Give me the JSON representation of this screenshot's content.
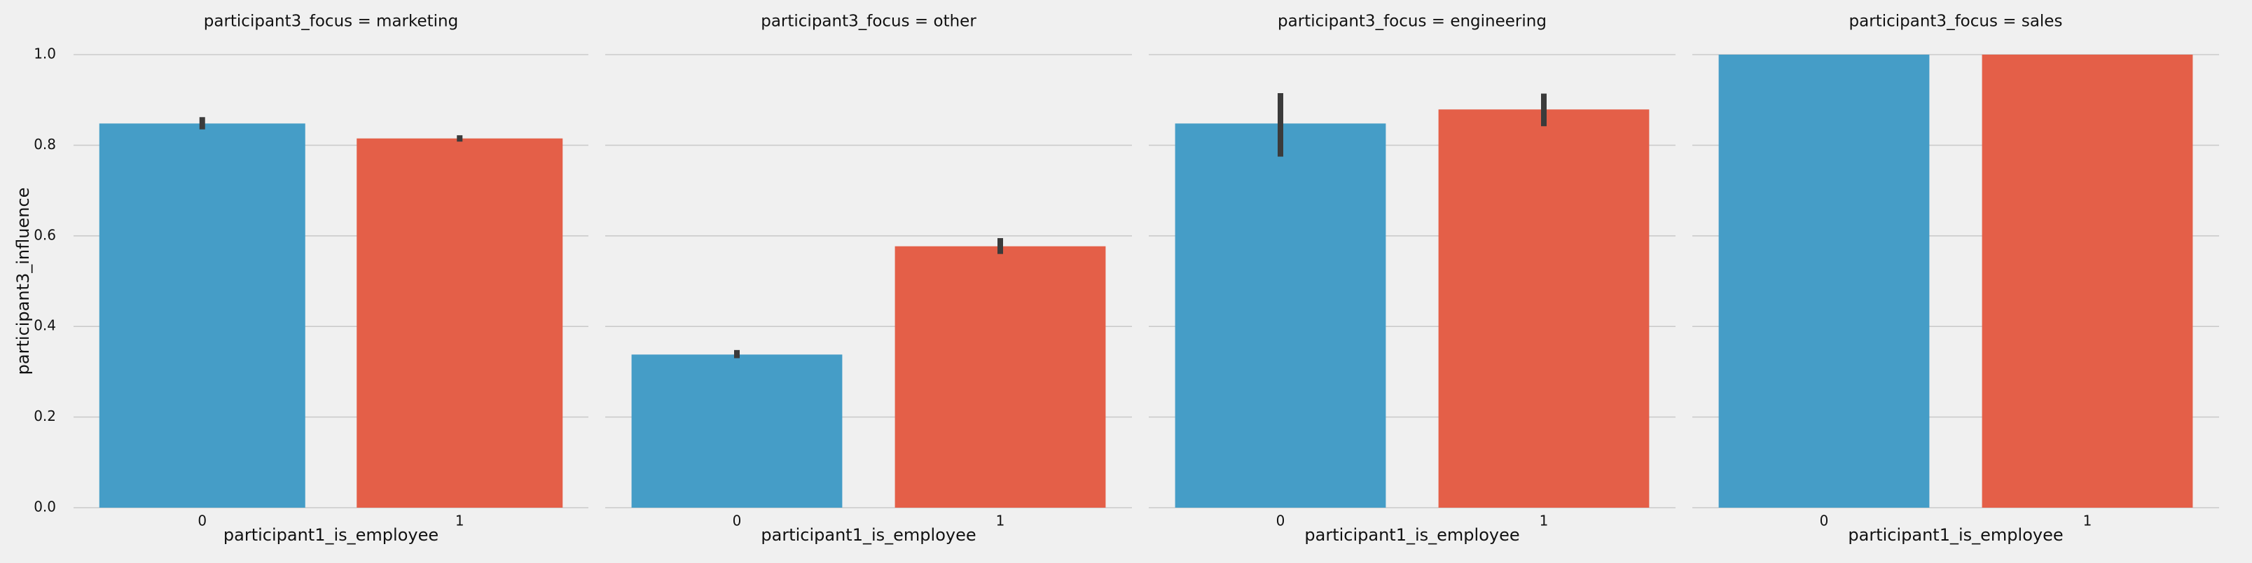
{
  "chart_data": {
    "type": "bar",
    "xlabel": "participant1_is_employee",
    "ylabel": "participant3_influence",
    "ylim": [
      0,
      1.0
    ],
    "yticks": [
      "0.0",
      "0.2",
      "0.4",
      "0.6",
      "0.8",
      "1.0"
    ],
    "categories": [
      "0",
      "1"
    ],
    "grid": true,
    "colors": {
      "0": "#459dc7",
      "1": "#e45f48",
      "errorbar": "#3b3b3b",
      "grid": "#cbcbcb",
      "background": "#f0f0f0"
    },
    "facets": [
      {
        "title": "participant3_focus = marketing",
        "values": [
          0.848,
          0.815
        ],
        "err": [
          [
            0.835,
            0.862
          ],
          [
            0.808,
            0.822
          ]
        ]
      },
      {
        "title": "participant3_focus = other",
        "values": [
          0.338,
          0.577
        ],
        "err": [
          [
            0.33,
            0.348
          ],
          [
            0.56,
            0.595
          ]
        ]
      },
      {
        "title": "participant3_focus = engineering",
        "values": [
          0.848,
          0.879
        ],
        "err": [
          [
            0.775,
            0.915
          ],
          [
            0.842,
            0.914
          ]
        ]
      },
      {
        "title": "participant3_focus = sales",
        "values": [
          1.0,
          1.0
        ],
        "err": [
          [
            1.0,
            1.0
          ],
          [
            1.0,
            1.0
          ]
        ]
      }
    ]
  }
}
